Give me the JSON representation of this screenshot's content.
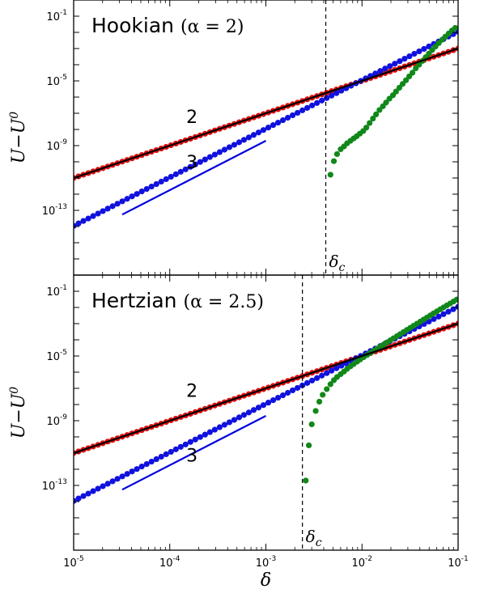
{
  "chart_data": [
    {
      "type": "scatter",
      "title_text": "Hookian",
      "title_math": "(α = 2)",
      "xlabel": "δ",
      "ylabel": "U−U0",
      "x_scale": "log",
      "y_scale": "log",
      "xlim": [
        1e-05,
        0.1
      ],
      "ylim": [
        1e-17,
        1
      ],
      "x_ticks": [
        {
          "base": "10",
          "exp": "-5"
        },
        {
          "base": "10",
          "exp": "-4"
        },
        {
          "base": "10",
          "exp": "-3"
        },
        {
          "base": "10",
          "exp": "-2"
        },
        {
          "base": "10",
          "exp": "-1"
        }
      ],
      "y_ticks": [
        {
          "base": "10",
          "exp": "-1"
        },
        {
          "base": "10",
          "exp": "-5"
        },
        {
          "base": "10",
          "exp": "-9"
        },
        {
          "base": "10",
          "exp": "-13"
        }
      ],
      "critical_delta": {
        "label": "δ",
        "subscript": "c",
        "value": 0.0042
      },
      "slope_guides": [
        {
          "label": "3",
          "x": [
            3.2e-05,
            0.001
          ],
          "y": [
            5.5e-14,
            2e-09
          ],
          "color": "#0000dd"
        }
      ],
      "slope_labels": [
        {
          "text": "2",
          "x": 0.00017,
          "y": 2.5e-08
        },
        {
          "text": "3",
          "x": 0.00017,
          "y": 4e-11
        }
      ],
      "series": [
        {
          "color": "#dd1111",
          "kind": "power",
          "prefactor": 0.1,
          "exponent": 2.0,
          "x_range": [
            1e-05,
            0.1
          ],
          "n_points": 80
        },
        {
          "color": "#1111dd",
          "kind": "power",
          "prefactor": 11.0,
          "exponent": 3.0,
          "x_range": [
            1e-05,
            0.1
          ],
          "n_points": 80
        },
        {
          "color": "#11881a",
          "kind": "points",
          "x": [
            0.0047,
            0.0051,
            0.0055,
            0.006,
            0.0065,
            0.007,
            0.0076,
            0.0082,
            0.0088,
            0.0095,
            0.0103,
            0.0111,
            0.012,
            0.013,
            0.014,
            0.0152,
            0.0165,
            0.0178,
            0.0193,
            0.021,
            0.0226,
            0.0245,
            0.0265,
            0.0287,
            0.031,
            0.0335,
            0.0363,
            0.0393,
            0.0425,
            0.046,
            0.0497,
            0.0538,
            0.0582,
            0.063,
            0.0682,
            0.0738,
            0.0798,
            0.0865,
            0.0935
          ],
          "y": [
            1.6e-11,
            1.1e-10,
            3e-10,
            6e-10,
            9e-10,
            1.4e-09,
            2e-09,
            2.8e-09,
            3.8e-09,
            5.5e-09,
            8e-09,
            1.3e-08,
            2.5e-08,
            4.7e-08,
            8.5e-08,
            1.6e-07,
            2.7e-07,
            4.6e-07,
            8e-07,
            1.3e-06,
            2.2e-06,
            3.8e-06,
            6.5e-06,
            1.1e-05,
            1.9e-05,
            3.2e-05,
            6e-05,
            0.0001,
            0.00017,
            0.00029,
            0.00049,
            0.00082,
            0.00135,
            0.0022,
            0.0035,
            0.0055,
            0.0085,
            0.013,
            0.019
          ]
        },
        {
          "color": "#000000",
          "kind": "line",
          "prefactor": 0.1,
          "exponent": 2.0,
          "x_range": [
            1e-05,
            0.1
          ]
        }
      ]
    },
    {
      "type": "scatter",
      "title_text": "Hertzian",
      "title_math": "(α = 2.5)",
      "xlabel": "δ",
      "ylabel": "U−U0",
      "x_scale": "log",
      "y_scale": "log",
      "xlim": [
        1e-05,
        0.1
      ],
      "ylim": [
        1e-17,
        1
      ],
      "x_ticks": [
        {
          "base": "10",
          "exp": "-5"
        },
        {
          "base": "10",
          "exp": "-4"
        },
        {
          "base": "10",
          "exp": "-3"
        },
        {
          "base": "10",
          "exp": "-2"
        },
        {
          "base": "10",
          "exp": "-1"
        }
      ],
      "y_ticks": [
        {
          "base": "10",
          "exp": "-1"
        },
        {
          "base": "10",
          "exp": "-5"
        },
        {
          "base": "10",
          "exp": "-9"
        },
        {
          "base": "10",
          "exp": "-13"
        }
      ],
      "critical_delta": {
        "label": "δ",
        "subscript": "c",
        "value": 0.0024
      },
      "slope_guides": [
        {
          "label": "3",
          "x": [
            3.2e-05,
            0.001
          ],
          "y": [
            5.5e-14,
            2e-09
          ],
          "color": "#0000dd"
        }
      ],
      "slope_labels": [
        {
          "text": "2",
          "x": 0.00017,
          "y": 3e-08
        },
        {
          "text": "3",
          "x": 0.00017,
          "y": 3e-12
        }
      ],
      "series": [
        {
          "color": "#dd1111",
          "kind": "power",
          "prefactor": 0.1,
          "exponent": 2.0,
          "x_range": [
            1e-05,
            0.1
          ],
          "n_points": 80
        },
        {
          "color": "#1111dd",
          "kind": "power",
          "prefactor": 11.0,
          "exponent": 3.0,
          "x_range": [
            1e-05,
            0.1
          ],
          "n_points": 80
        },
        {
          "color": "#11881a",
          "kind": "points",
          "x": [
            0.0026,
            0.0028,
            0.003,
            0.0033,
            0.0036,
            0.0039,
            0.0043,
            0.0047,
            0.0051,
            0.0055,
            0.006,
            0.0065,
            0.007,
            0.0076,
            0.0082,
            0.0089,
            0.0096,
            0.0104,
            0.0113,
            0.0122,
            0.0132,
            0.0143,
            0.0155,
            0.0168,
            0.0182,
            0.0197,
            0.0213,
            0.0231,
            0.025,
            0.0271,
            0.0293,
            0.0318,
            0.0344,
            0.0373,
            0.0404,
            0.0437,
            0.0474,
            0.0513,
            0.0555,
            0.0601,
            0.0651,
            0.0705,
            0.0764,
            0.0827,
            0.0896,
            0.097
          ],
          "y": [
            2e-13,
            3e-11,
            6e-10,
            4e-09,
            1.5e-08,
            4e-08,
            9e-08,
            1.8e-07,
            3.2e-07,
            5e-07,
            7.5e-07,
            1.1e-06,
            1.6e-06,
            2.3e-06,
            3.2e-06,
            4.5e-06,
            6.2e-06,
            8.5e-06,
            1.15e-05,
            1.55e-05,
            2.1e-05,
            2.8e-05,
            3.8e-05,
            5.1e-05,
            6.9e-05,
            9.3e-05,
            0.000125,
            0.000168,
            0.000226,
            0.000304,
            0.000408,
            0.000548,
            0.000736,
            0.000988,
            0.00133,
            0.00178,
            0.00239,
            0.0032,
            0.0043,
            0.0057,
            0.0076,
            0.0101,
            0.0134,
            0.0177,
            0.0234,
            0.0308
          ]
        },
        {
          "color": "#000000",
          "kind": "line",
          "prefactor": 0.1,
          "exponent": 2.0,
          "x_range": [
            1e-05,
            0.1
          ]
        }
      ]
    }
  ]
}
